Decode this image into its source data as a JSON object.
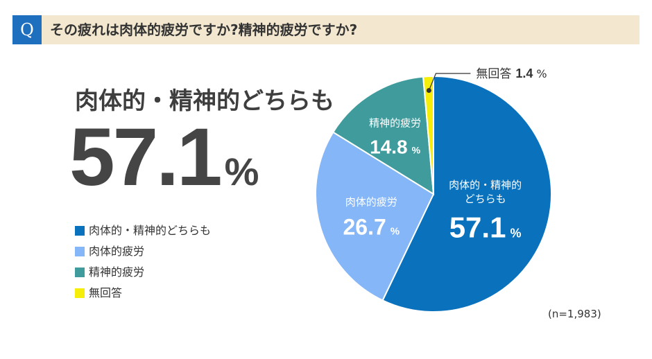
{
  "question": {
    "badge": "Q",
    "text": "その疲れは肉体的疲労ですか?精神的疲労ですか?"
  },
  "highlight": {
    "label": "肉体的・精神的どちらも",
    "value": "57.1",
    "unit": "%"
  },
  "sample_note": "(n=1,983)",
  "colors": {
    "question_badge": "#1f6fbf",
    "question_bar": "#f3e8cf",
    "both": "#0a72bc",
    "physical": "#85b6f7",
    "mental": "#409b9d",
    "no_answer": "#f5ee0a"
  },
  "chart_data": {
    "type": "pie",
    "title": "",
    "start_angle_deg": 0,
    "direction": "clockwise",
    "slices": [
      {
        "name": "肉体的・精神的どちらも",
        "label_lines": [
          "肉体的・精神的",
          "どちらも"
        ],
        "value": 57.1,
        "value_text": "57.1",
        "unit": "%",
        "color": "#0a72bc"
      },
      {
        "name": "肉体的疲労",
        "label_lines": [
          "肉体的疲労"
        ],
        "value": 26.7,
        "value_text": "26.7",
        "unit": "%",
        "color": "#85b6f7"
      },
      {
        "name": "精神的疲労",
        "label_lines": [
          "精神的疲労"
        ],
        "value": 14.8,
        "value_text": "14.8",
        "unit": "%",
        "color": "#409b9d"
      },
      {
        "name": "無回答",
        "label_lines": [
          "無回答"
        ],
        "value": 1.4,
        "value_text": "1.4",
        "unit": "%",
        "color": "#f5ee0a"
      }
    ],
    "legend": [
      "肉体的・精神的どちらも",
      "肉体的疲労",
      "精神的疲労",
      "無回答"
    ],
    "legend_position": "left"
  }
}
